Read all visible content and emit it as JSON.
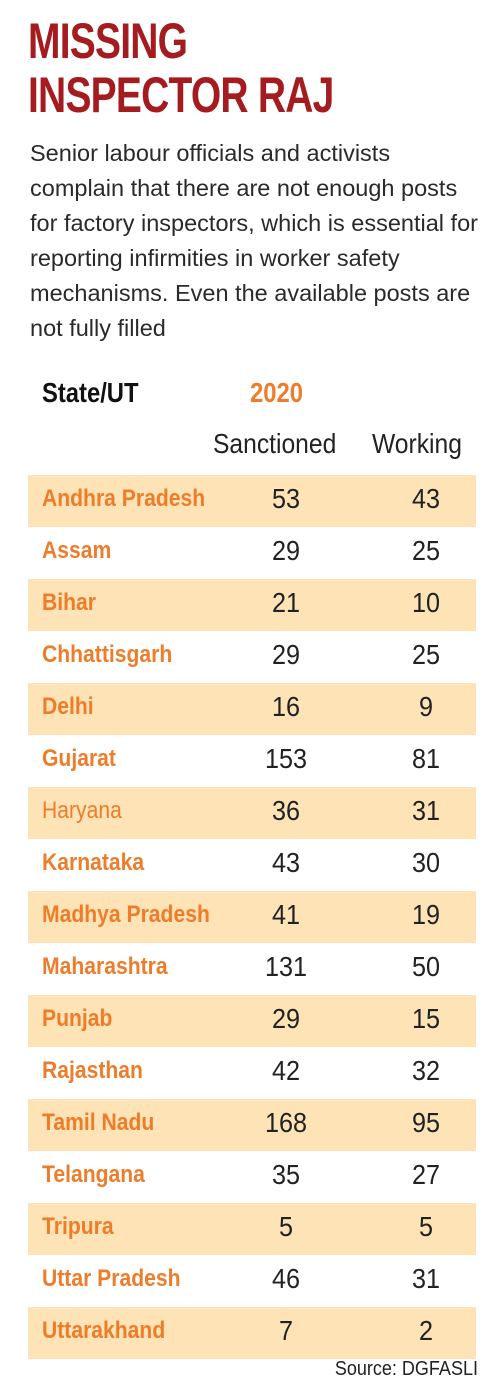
{
  "title_lines": [
    "MISSING",
    "INSPECTOR RAJ"
  ],
  "subtitle": "Senior labour officials and activists complain that there are not enough posts for factory inspectors, which is essential for reporting infirmities in worker safety mechanisms. Even the available posts are not fully filled",
  "source": "Source: DGFASLI",
  "colors": {
    "title": "#a41c1f",
    "accent": "#ee7d2b",
    "stripe": "#fde3b6"
  },
  "chart_data": {
    "type": "table",
    "state_header": "State/UT",
    "year": "2020",
    "columns": [
      "Sanctioned",
      "Working"
    ],
    "rows": [
      {
        "state": "Andhra Pradesh",
        "sanctioned": 53,
        "working": 43
      },
      {
        "state": "Assam",
        "sanctioned": 29,
        "working": 25
      },
      {
        "state": "Bihar",
        "sanctioned": 21,
        "working": 10
      },
      {
        "state": "Chhattisgarh",
        "sanctioned": 29,
        "working": 25
      },
      {
        "state": "Delhi",
        "sanctioned": 16,
        "working": 9
      },
      {
        "state": "Gujarat",
        "sanctioned": 153,
        "working": 81
      },
      {
        "state": "Haryana",
        "sanctioned": 36,
        "working": 31,
        "light": true
      },
      {
        "state": "Karnataka",
        "sanctioned": 43,
        "working": 30
      },
      {
        "state": "Madhya Pradesh",
        "sanctioned": 41,
        "working": 19
      },
      {
        "state": "Maharashtra",
        "sanctioned": 131,
        "working": 50
      },
      {
        "state": "Punjab",
        "sanctioned": 29,
        "working": 15
      },
      {
        "state": "Rajasthan",
        "sanctioned": 42,
        "working": 32
      },
      {
        "state": "Tamil Nadu",
        "sanctioned": 168,
        "working": 95
      },
      {
        "state": "Telangana",
        "sanctioned": 35,
        "working": 27
      },
      {
        "state": "Tripura",
        "sanctioned": 5,
        "working": 5
      },
      {
        "state": "Uttar Pradesh",
        "sanctioned": 46,
        "working": 31
      },
      {
        "state": "Uttarakhand",
        "sanctioned": 7,
        "working": 2
      }
    ]
  }
}
